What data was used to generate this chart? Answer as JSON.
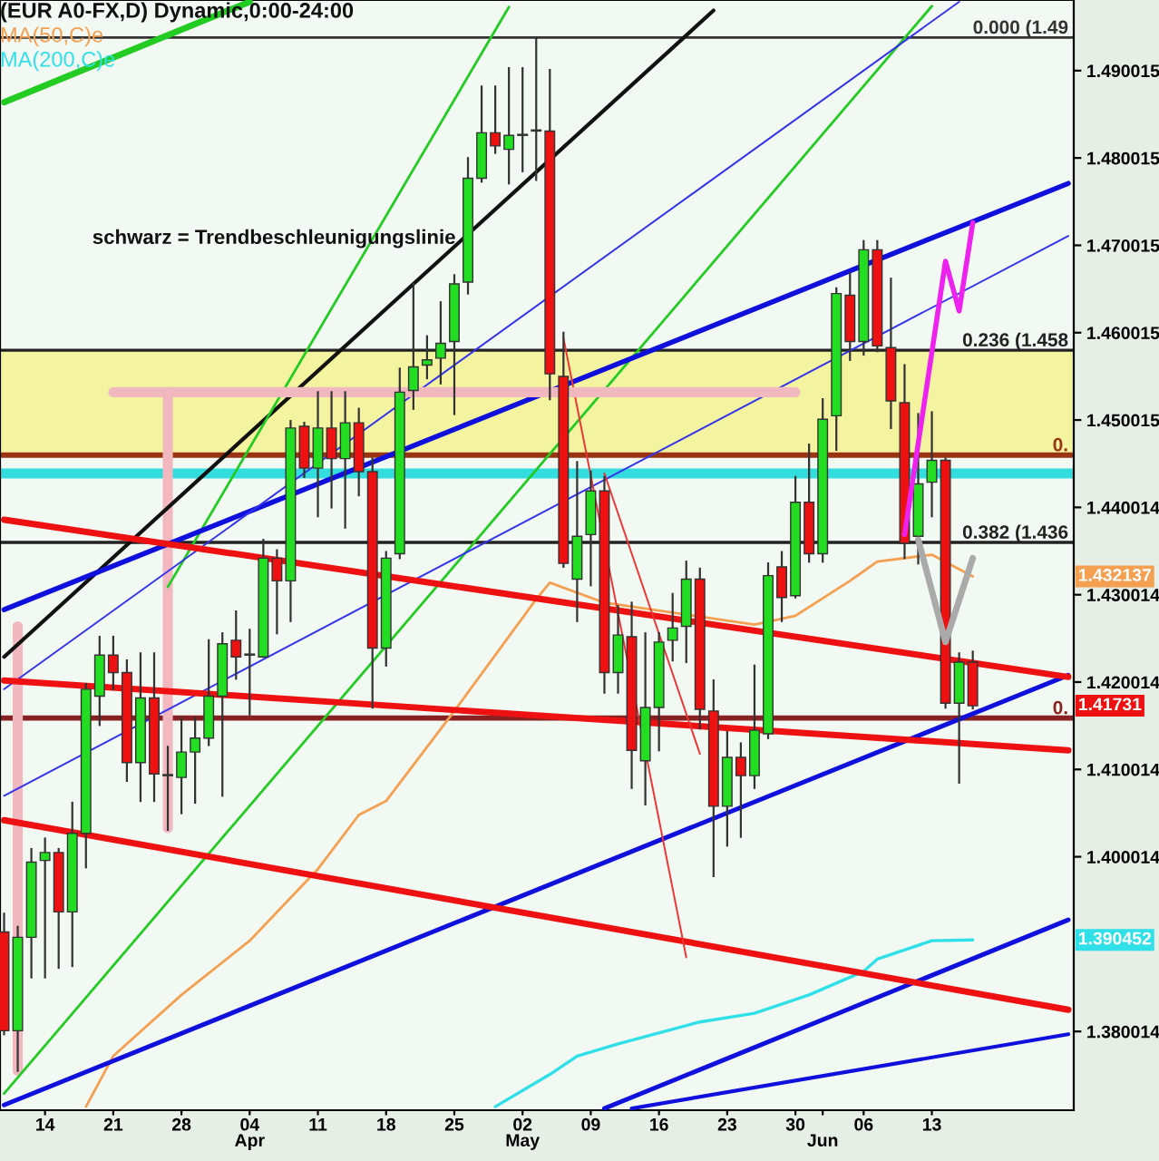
{
  "chart_data": {
    "type": "candlestick",
    "title": "(EUR A0-FX,D) Dynamic,0:00-24:00",
    "categories": [
      null,
      null,
      null,
      "14",
      null,
      null,
      null,
      null,
      "21",
      null,
      null,
      null,
      null,
      "28",
      null,
      null,
      null,
      null,
      "04\nApr",
      null,
      null,
      null,
      null,
      "11",
      null,
      null,
      null,
      null,
      "18",
      null,
      null,
      null,
      null,
      "25",
      null,
      null,
      null,
      null,
      "02\nMay",
      null,
      null,
      null,
      null,
      "09",
      null,
      null,
      null,
      null,
      "16",
      null,
      null,
      null,
      null,
      "23",
      null,
      null,
      null,
      null,
      "30",
      null,
      "\nJun",
      null,
      null,
      "06",
      null,
      null,
      null,
      null,
      "13",
      null,
      null,
      null,
      null,
      null,
      null,
      null,
      null,
      null,
      null
    ],
    "ohlc": [
      [
        1.3914,
        1.3935,
        1.3797,
        1.3801
      ],
      [
        1.3801,
        1.392,
        1.3755,
        1.3908
      ],
      [
        1.3908,
        1.4009,
        1.3862,
        1.3994
      ],
      [
        1.3996,
        1.4021,
        1.3862,
        1.4005
      ],
      [
        1.4005,
        1.4009,
        1.3873,
        1.3937
      ],
      [
        1.3937,
        1.4062,
        1.3875,
        1.4027
      ],
      [
        1.4027,
        1.4198,
        1.3988,
        1.4192
      ],
      [
        1.4184,
        1.4252,
        1.4151,
        1.4231
      ],
      [
        1.4231,
        1.4252,
        1.4192,
        1.4211
      ],
      [
        1.4211,
        1.4225,
        1.4087,
        1.4108
      ],
      [
        1.4108,
        1.4233,
        1.4064,
        1.4182
      ],
      [
        1.4182,
        1.4233,
        1.4064,
        1.4095
      ],
      [
        1.4093,
        1.4126,
        1.4031,
        1.4093
      ],
      [
        1.4091,
        1.4159,
        1.405,
        1.412
      ],
      [
        1.412,
        1.4159,
        1.4062,
        1.4136
      ],
      [
        1.4136,
        1.4248,
        1.4128,
        1.4184
      ],
      [
        1.4184,
        1.4256,
        1.407,
        1.4244
      ],
      [
        1.4248,
        1.4281,
        1.4204,
        1.4229
      ],
      [
        1.4231,
        1.426,
        1.4163,
        1.4231
      ],
      [
        1.4229,
        1.4363,
        1.4229,
        1.4342
      ],
      [
        1.4342,
        1.4351,
        1.4256,
        1.4316
      ],
      [
        1.4316,
        1.4499,
        1.427,
        1.4491
      ],
      [
        1.4493,
        1.4497,
        1.4435,
        1.4445
      ],
      [
        1.4445,
        1.4532,
        1.439,
        1.4491
      ],
      [
        1.4491,
        1.4532,
        1.44,
        1.4456
      ],
      [
        1.4456,
        1.4532,
        1.4377,
        1.4497
      ],
      [
        1.4497,
        1.4513,
        1.4414,
        1.4441
      ],
      [
        1.4441,
        1.4456,
        1.4171,
        1.4239
      ],
      [
        1.4239,
        1.4349,
        1.4219,
        1.4342
      ],
      [
        1.4347,
        1.4559,
        1.4342,
        1.4532
      ],
      [
        1.4534,
        1.4656,
        1.4513,
        1.4561
      ],
      [
        1.4563,
        1.4596,
        1.4548,
        1.4569
      ],
      [
        1.4571,
        1.4635,
        1.4542,
        1.4588
      ],
      [
        1.459,
        1.4666,
        1.4507,
        1.4656
      ],
      [
        1.4658,
        1.48,
        1.4645,
        1.4777
      ],
      [
        1.4777,
        1.4882,
        1.4773,
        1.4829
      ],
      [
        1.4829,
        1.4882,
        1.4806,
        1.4814
      ],
      [
        1.481,
        1.4903,
        1.4771,
        1.4826
      ],
      [
        1.4826,
        1.4903,
        1.4785,
        1.4826
      ],
      [
        1.4831,
        1.4938,
        1.4775,
        1.4831
      ],
      [
        1.4831,
        1.4901,
        1.4524,
        1.4553
      ],
      [
        1.455,
        1.46,
        1.4332,
        1.4336
      ],
      [
        1.4318,
        1.4452,
        1.427,
        1.4367
      ],
      [
        1.4369,
        1.4441,
        1.4311,
        1.4419
      ],
      [
        1.4419,
        1.4435,
        1.4188,
        1.4211
      ],
      [
        1.4211,
        1.4287,
        1.4188,
        1.4254
      ],
      [
        1.4252,
        1.4291,
        1.4079,
        1.4122
      ],
      [
        1.411,
        1.4256,
        1.406,
        1.4171
      ],
      [
        1.4171,
        1.4256,
        1.4122,
        1.4246
      ],
      [
        1.4248,
        1.4301,
        1.4225,
        1.4262
      ],
      [
        1.4264,
        1.4338,
        1.4223,
        1.4318
      ],
      [
        1.4318,
        1.433,
        1.4147,
        1.4169
      ],
      [
        1.4167,
        1.4202,
        1.3978,
        1.4058
      ],
      [
        1.4058,
        1.4143,
        1.4013,
        1.4114
      ],
      [
        1.4114,
        1.413,
        1.4023,
        1.4093
      ],
      [
        1.4093,
        1.4219,
        1.4079,
        1.4145
      ],
      [
        1.4141,
        1.4336,
        1.4136,
        1.4322
      ],
      [
        1.4332,
        1.4349,
        1.427,
        1.4297
      ],
      [
        1.4299,
        1.4435,
        1.4297,
        1.4406
      ],
      [
        1.4406,
        1.4472,
        1.4338,
        1.4347
      ],
      [
        1.4347,
        1.4524,
        1.4338,
        1.4501
      ],
      [
        1.4505,
        1.4651,
        1.4466,
        1.4645
      ],
      [
        1.4643,
        1.4668,
        1.4569,
        1.459
      ],
      [
        1.459,
        1.4705,
        1.4575,
        1.4695
      ],
      [
        1.4695,
        1.4705,
        1.4579,
        1.4585
      ],
      [
        1.4583,
        1.4662,
        1.4491,
        1.4522
      ],
      [
        1.452,
        1.4563,
        1.4342,
        1.4359
      ],
      [
        1.4367,
        1.4507,
        1.4336,
        1.4427
      ],
      [
        1.4429,
        1.4509,
        1.439,
        1.4454
      ],
      [
        1.4454,
        1.4456,
        1.4171,
        1.4176
      ],
      [
        1.4176,
        1.4233,
        1.4085,
        1.4223
      ],
      [
        1.4223,
        1.4235,
        1.417,
        1.4173
      ],
      null,
      null,
      null,
      null,
      null,
      null,
      null
    ],
    "series": [
      {
        "name": "MA(50,C)e",
        "type": "line",
        "color": "#f4a050",
        "values": [
          null,
          null,
          null,
          null,
          null,
          null,
          1.3714,
          null,
          1.3772,
          null,
          null,
          null,
          null,
          1.3842,
          null,
          null,
          null,
          null,
          1.3904,
          null,
          null,
          null,
          null,
          1.3986,
          null,
          null,
          1.4048,
          null,
          1.4064,
          null,
          null,
          null,
          null,
          1.4167,
          null,
          null,
          null,
          null,
          null,
          1.4295,
          1.4314,
          null,
          null,
          null,
          1.4291,
          null,
          null,
          null,
          null,
          null,
          null,
          null,
          null,
          null,
          null,
          1.4266,
          null,
          null,
          1.4276,
          null,
          null,
          null,
          1.4316,
          null,
          1.4338,
          null,
          null,
          null,
          1.4346,
          null,
          null,
          1.4321,
          null,
          null,
          null,
          null,
          null,
          null,
          null
        ]
      },
      {
        "name": "MA(200,C)e",
        "type": "line",
        "color": "#30e0e8",
        "values": [
          null,
          null,
          null,
          null,
          null,
          null,
          null,
          null,
          null,
          null,
          null,
          null,
          null,
          null,
          null,
          null,
          null,
          null,
          null,
          null,
          null,
          null,
          null,
          null,
          null,
          null,
          null,
          null,
          null,
          null,
          null,
          null,
          null,
          null,
          null,
          null,
          1.3714,
          null,
          null,
          null,
          1.3751,
          null,
          1.3772,
          null,
          null,
          1.3786,
          null,
          null,
          null,
          null,
          null,
          1.3811,
          null,
          null,
          null,
          1.3821,
          null,
          null,
          null,
          1.3842,
          null,
          null,
          null,
          1.3869,
          1.3883,
          null,
          null,
          null,
          1.3904,
          null,
          null,
          1.3905,
          null,
          null,
          null,
          null,
          null,
          null,
          null
        ]
      },
      {
        "type": "line",
        "color": "#111111",
        "values": [
          1.4229,
          null,
          null,
          null,
          null,
          null,
          null,
          null,
          null,
          null,
          null,
          null,
          null,
          null,
          null,
          null,
          null,
          null,
          null,
          null,
          null,
          null,
          null,
          null,
          null,
          null,
          null,
          null,
          null,
          null,
          null,
          null,
          null,
          null,
          null,
          null,
          null,
          null,
          null,
          null,
          null,
          null,
          null,
          null,
          null,
          null,
          null,
          null,
          null,
          null,
          null,
          null,
          1.4969,
          null,
          null,
          null,
          null,
          null,
          null,
          null,
          null,
          null,
          null,
          null,
          null,
          null,
          null,
          null,
          null,
          null,
          null,
          null,
          null,
          null,
          null,
          null,
          null,
          null,
          null
        ]
      },
      {
        "type": "line",
        "color": "#22cc22",
        "values": [
          1.4864,
          null,
          null,
          null,
          null,
          null,
          null,
          null,
          null,
          null,
          null,
          null,
          null,
          null,
          null,
          null,
          null,
          null,
          1.4979,
          null,
          null,
          null,
          null,
          null,
          null,
          null,
          null,
          null,
          null,
          null,
          null,
          null,
          null,
          null,
          null,
          null,
          null,
          null,
          null,
          null,
          null,
          null,
          null,
          null,
          null,
          null,
          null,
          null,
          null,
          null,
          null,
          null,
          null,
          null,
          null,
          null,
          null,
          null,
          null,
          null,
          null,
          null,
          null,
          null,
          null,
          null,
          null,
          null,
          null,
          null,
          null,
          null,
          null,
          null,
          null,
          null,
          null,
          null,
          null
        ]
      },
      {
        "type": "line",
        "color": "#22cc22",
        "values": [
          null,
          null,
          null,
          null,
          null,
          null,
          null,
          null,
          null,
          null,
          null,
          null,
          1.4309,
          null,
          null,
          null,
          null,
          null,
          null,
          null,
          null,
          null,
          null,
          null,
          null,
          null,
          null,
          null,
          null,
          null,
          null,
          null,
          null,
          null,
          null,
          null,
          null,
          1.4973,
          null,
          null,
          null,
          null,
          null,
          null,
          null,
          null,
          null,
          null,
          null,
          null,
          null,
          null,
          null,
          null,
          null,
          null,
          null,
          null,
          null,
          null,
          null,
          null,
          null,
          null,
          null,
          null,
          null,
          null,
          null,
          null,
          null,
          null,
          null,
          null,
          null,
          null,
          null,
          null,
          null
        ]
      },
      {
        "type": "line",
        "color": "#22cc22",
        "values": [
          1.3729,
          null,
          null,
          null,
          null,
          null,
          null,
          null,
          null,
          null,
          null,
          null,
          null,
          null,
          null,
          null,
          null,
          null,
          null,
          null,
          null,
          null,
          null,
          null,
          null,
          null,
          null,
          null,
          null,
          null,
          null,
          null,
          null,
          null,
          null,
          null,
          null,
          null,
          null,
          null,
          null,
          null,
          null,
          null,
          null,
          null,
          null,
          null,
          null,
          null,
          null,
          null,
          null,
          null,
          null,
          null,
          null,
          null,
          null,
          null,
          null,
          null,
          null,
          null,
          null,
          null,
          null,
          null,
          1.4974,
          null,
          null,
          null,
          null,
          null,
          null,
          null,
          null,
          null,
          null
        ]
      },
      {
        "type": "line",
        "color": "#1010dd",
        "values": [
          1.4283,
          null,
          null,
          null,
          null,
          null,
          null,
          null,
          null,
          null,
          null,
          null,
          null,
          null,
          null,
          null,
          null,
          null,
          null,
          null,
          null,
          null,
          null,
          null,
          null,
          null,
          null,
          null,
          null,
          null,
          null,
          null,
          null,
          null,
          null,
          null,
          null,
          null,
          null,
          null,
          null,
          null,
          null,
          null,
          null,
          null,
          null,
          null,
          null,
          null,
          null,
          null,
          null,
          null,
          null,
          null,
          null,
          null,
          null,
          null,
          null,
          null,
          null,
          null,
          null,
          null,
          null,
          null,
          null,
          null,
          null,
          null,
          null,
          null,
          null,
          null,
          null,
          null,
          1.4771
        ]
      },
      {
        "type": "line",
        "color": "#3333ee",
        "values": [
          1.4192,
          null,
          null,
          null,
          null,
          null,
          null,
          null,
          null,
          null,
          null,
          null,
          null,
          null,
          null,
          null,
          null,
          null,
          null,
          null,
          null,
          null,
          null,
          null,
          null,
          null,
          null,
          null,
          null,
          null,
          null,
          null,
          null,
          null,
          null,
          null,
          null,
          null,
          null,
          null,
          null,
          null,
          null,
          null,
          null,
          null,
          null,
          null,
          null,
          null,
          null,
          null,
          null,
          null,
          null,
          null,
          null,
          null,
          null,
          null,
          null,
          null,
          null,
          null,
          null,
          null,
          null,
          null,
          null,
          null,
          1.4979,
          null,
          null,
          null,
          null,
          null,
          null,
          null,
          null
        ]
      },
      {
        "type": "line",
        "color": "#3333ee",
        "values": [
          1.407,
          null,
          null,
          null,
          null,
          null,
          null,
          null,
          null,
          null,
          null,
          null,
          null,
          null,
          null,
          null,
          null,
          null,
          null,
          null,
          null,
          null,
          null,
          null,
          null,
          null,
          null,
          null,
          null,
          null,
          null,
          null,
          null,
          null,
          null,
          null,
          null,
          null,
          null,
          null,
          null,
          null,
          null,
          null,
          null,
          null,
          null,
          null,
          null,
          null,
          null,
          null,
          null,
          null,
          null,
          null,
          null,
          null,
          null,
          null,
          null,
          null,
          null,
          null,
          null,
          null,
          null,
          null,
          null,
          null,
          null,
          null,
          null,
          null,
          null,
          null,
          null,
          null,
          1.4711
        ]
      },
      {
        "type": "line",
        "color": "#1010dd",
        "values": [
          1.3716,
          null,
          null,
          null,
          null,
          null,
          null,
          null,
          null,
          null,
          null,
          null,
          null,
          null,
          null,
          null,
          null,
          null,
          null,
          null,
          null,
          null,
          null,
          null,
          null,
          null,
          null,
          null,
          null,
          null,
          null,
          null,
          null,
          null,
          null,
          null,
          null,
          null,
          null,
          null,
          null,
          null,
          null,
          null,
          null,
          null,
          null,
          null,
          null,
          null,
          null,
          null,
          null,
          null,
          null,
          null,
          null,
          null,
          null,
          null,
          null,
          null,
          null,
          null,
          null,
          null,
          null,
          null,
          null,
          null,
          null,
          null,
          null,
          null,
          null,
          null,
          null,
          null,
          1.4208
        ]
      },
      {
        "type": "line",
        "color": "#1010dd",
        "values": [
          null,
          null,
          null,
          null,
          null,
          null,
          null,
          null,
          null,
          null,
          null,
          null,
          null,
          null,
          null,
          null,
          null,
          null,
          null,
          null,
          null,
          null,
          null,
          null,
          null,
          null,
          null,
          null,
          null,
          null,
          null,
          null,
          null,
          null,
          null,
          null,
          null,
          null,
          null,
          null,
          null,
          null,
          null,
          null,
          1.3712,
          null,
          null,
          null,
          null,
          null,
          null,
          null,
          null,
          null,
          null,
          null,
          null,
          null,
          null,
          null,
          null,
          null,
          null,
          null,
          null,
          null,
          null,
          null,
          null,
          null,
          null,
          null,
          null,
          null,
          null,
          null,
          null,
          null,
          1.3928
        ]
      },
      {
        "type": "line",
        "color": "#1010dd",
        "values": [
          null,
          null,
          null,
          null,
          null,
          null,
          null,
          null,
          null,
          null,
          null,
          null,
          null,
          null,
          null,
          null,
          null,
          null,
          null,
          null,
          null,
          null,
          null,
          null,
          null,
          null,
          null,
          null,
          null,
          null,
          null,
          null,
          null,
          null,
          null,
          null,
          null,
          null,
          null,
          null,
          null,
          null,
          null,
          null,
          null,
          null,
          1.3712,
          null,
          null,
          null,
          null,
          null,
          null,
          null,
          null,
          null,
          null,
          null,
          null,
          null,
          null,
          null,
          null,
          null,
          null,
          null,
          null,
          null,
          null,
          null,
          null,
          null,
          null,
          null,
          null,
          null,
          null,
          null,
          1.3797
        ]
      },
      {
        "type": "line",
        "color": "#ee1111",
        "values": [
          1.4386,
          null,
          null,
          null,
          null,
          null,
          null,
          null,
          null,
          null,
          null,
          null,
          null,
          null,
          null,
          null,
          null,
          null,
          null,
          null,
          null,
          null,
          null,
          null,
          null,
          null,
          null,
          null,
          null,
          null,
          null,
          null,
          null,
          null,
          null,
          null,
          null,
          null,
          null,
          null,
          null,
          null,
          null,
          null,
          null,
          null,
          null,
          null,
          null,
          null,
          null,
          null,
          null,
          null,
          null,
          null,
          null,
          null,
          null,
          null,
          null,
          null,
          null,
          null,
          null,
          null,
          null,
          null,
          null,
          null,
          null,
          null,
          null,
          null,
          null,
          null,
          null,
          null,
          1.4206
        ]
      },
      {
        "type": "line",
        "color": "#ee1111",
        "values": [
          1.4202,
          null,
          null,
          null,
          null,
          null,
          null,
          null,
          null,
          null,
          null,
          null,
          null,
          null,
          null,
          null,
          null,
          null,
          null,
          null,
          null,
          null,
          null,
          null,
          null,
          null,
          null,
          null,
          null,
          null,
          null,
          null,
          null,
          null,
          null,
          null,
          null,
          null,
          null,
          null,
          null,
          null,
          null,
          null,
          null,
          null,
          null,
          null,
          null,
          null,
          null,
          null,
          null,
          null,
          null,
          null,
          null,
          null,
          null,
          null,
          null,
          null,
          null,
          null,
          null,
          null,
          null,
          null,
          null,
          null,
          null,
          null,
          null,
          null,
          null,
          null,
          null,
          null,
          1.4122
        ]
      },
      {
        "type": "line",
        "color": "#ee1111",
        "values": [
          1.4042,
          null,
          null,
          null,
          null,
          null,
          null,
          null,
          null,
          null,
          null,
          null,
          null,
          null,
          null,
          null,
          null,
          null,
          null,
          null,
          null,
          null,
          null,
          null,
          null,
          null,
          null,
          null,
          null,
          null,
          null,
          null,
          null,
          null,
          null,
          null,
          null,
          null,
          null,
          null,
          null,
          null,
          null,
          null,
          null,
          null,
          null,
          null,
          null,
          null,
          null,
          null,
          null,
          null,
          null,
          null,
          null,
          null,
          null,
          null,
          null,
          null,
          null,
          null,
          null,
          null,
          null,
          null,
          null,
          null,
          null,
          null,
          null,
          null,
          null,
          null,
          null,
          null,
          1.3825
        ]
      },
      {
        "type": "line",
        "color": "#ee3333",
        "values": [
          null,
          null,
          null,
          null,
          null,
          null,
          null,
          null,
          null,
          null,
          null,
          null,
          null,
          null,
          null,
          null,
          null,
          null,
          null,
          null,
          null,
          null,
          null,
          null,
          null,
          null,
          null,
          null,
          null,
          null,
          null,
          null,
          null,
          null,
          null,
          null,
          null,
          null,
          null,
          null,
          null,
          1.4594,
          null,
          null,
          null,
          null,
          null,
          null,
          null,
          null,
          1.3885,
          null,
          null,
          null,
          null,
          null,
          null,
          null,
          null,
          null,
          null,
          null,
          null,
          null,
          null,
          null,
          null,
          null,
          null,
          null,
          null,
          null,
          null,
          null,
          null,
          null,
          null,
          null,
          null
        ]
      },
      {
        "type": "line",
        "color": "#ee3333",
        "values": [
          null,
          null,
          null,
          null,
          null,
          null,
          null,
          null,
          null,
          null,
          null,
          null,
          null,
          null,
          null,
          null,
          null,
          null,
          null,
          null,
          null,
          null,
          null,
          null,
          null,
          null,
          null,
          null,
          null,
          null,
          null,
          null,
          null,
          null,
          null,
          null,
          null,
          null,
          null,
          null,
          null,
          null,
          null,
          null,
          1.4439,
          null,
          null,
          null,
          null,
          null,
          null,
          1.4118,
          null,
          null,
          null,
          null,
          null,
          null,
          null,
          null,
          null,
          null,
          null,
          null,
          null,
          null,
          null,
          null,
          null,
          null,
          null,
          null,
          null,
          null,
          null,
          null,
          null,
          null,
          null
        ]
      },
      {
        "type": "line",
        "color": "#ee22ee",
        "values": [
          null,
          null,
          null,
          null,
          null,
          null,
          null,
          null,
          null,
          null,
          null,
          null,
          null,
          null,
          null,
          null,
          null,
          null,
          null,
          null,
          null,
          null,
          null,
          null,
          null,
          null,
          null,
          null,
          null,
          null,
          null,
          null,
          null,
          null,
          null,
          null,
          null,
          null,
          null,
          null,
          null,
          null,
          null,
          null,
          null,
          null,
          null,
          null,
          null,
          null,
          null,
          null,
          null,
          null,
          null,
          null,
          null,
          null,
          null,
          null,
          null,
          null,
          null,
          null,
          null,
          null,
          1.4369,
          null,
          null,
          1.4682,
          1.4625,
          1.4726,
          null,
          null,
          null,
          null,
          null,
          null,
          null
        ]
      },
      {
        "type": "line",
        "color": "#aaaaaa",
        "values": [
          null,
          null,
          null,
          null,
          null,
          null,
          null,
          null,
          null,
          null,
          null,
          null,
          null,
          null,
          null,
          null,
          null,
          null,
          null,
          null,
          null,
          null,
          null,
          null,
          null,
          null,
          null,
          null,
          null,
          null,
          null,
          null,
          null,
          null,
          null,
          null,
          null,
          null,
          null,
          null,
          null,
          null,
          null,
          null,
          null,
          null,
          null,
          null,
          null,
          null,
          null,
          null,
          null,
          null,
          null,
          null,
          null,
          null,
          null,
          null,
          null,
          null,
          null,
          null,
          null,
          null,
          null,
          1.4363,
          null,
          1.4246,
          null,
          1.4342,
          null,
          null,
          null,
          null,
          null,
          null,
          null
        ]
      },
      {
        "type": "line",
        "color": "#f2b8c0",
        "values": [
          null,
          null,
          null,
          null,
          null,
          null,
          null,
          null,
          1.4532,
          null,
          null,
          null,
          null,
          null,
          null,
          null,
          null,
          null,
          null,
          null,
          null,
          null,
          null,
          null,
          null,
          null,
          null,
          null,
          null,
          null,
          null,
          null,
          null,
          null,
          null,
          null,
          null,
          null,
          null,
          null,
          null,
          null,
          null,
          null,
          null,
          null,
          null,
          null,
          null,
          null,
          null,
          null,
          null,
          null,
          null,
          null,
          null,
          null,
          1.4532,
          null,
          null,
          null,
          null,
          null,
          null,
          null,
          null,
          null,
          null,
          null,
          null,
          null,
          null,
          null,
          null,
          null,
          null,
          null,
          null
        ]
      }
    ],
    "bands": [
      {
        "axis": "y",
        "from": 1.446,
        "to": 1.458,
        "color": "#f4f4a0"
      }
    ],
    "ref_lines": [
      {
        "axis": "y",
        "value": 1.4938,
        "label": "0.000 (1.49",
        "color": "#333333"
      },
      {
        "axis": "y",
        "value": 1.458,
        "label": "0.236 (1.458",
        "color": "#222222"
      },
      {
        "axis": "y",
        "value": 1.436,
        "label": "0.382 (1.436",
        "color": "#222222"
      },
      {
        "axis": "y",
        "value": 1.446,
        "color": "#993311"
      },
      {
        "axis": "y",
        "value": 1.4439,
        "color": "#33dddd"
      },
      {
        "axis": "y",
        "value": 1.4159,
        "color": "#882222"
      }
    ],
    "annotations": [
      "schwarz = Trendbeschleunigungslinie",
      "1.432137",
      "1.390452",
      {
        "text": "1.41731",
        "y": 1.41731
      },
      {
        "text": "0.",
        "y": 1.446
      },
      {
        "text": "0.",
        "y": 1.4159
      }
    ],
    "ylim": [
      1.371,
      1.4981
    ],
    "yticks": [
      1.380014,
      1.400014,
      1.410014,
      1.420014,
      1.430014,
      1.440014,
      1.450015,
      1.460015,
      1.470015,
      1.480015,
      1.490015
    ],
    "grid": false
  }
}
